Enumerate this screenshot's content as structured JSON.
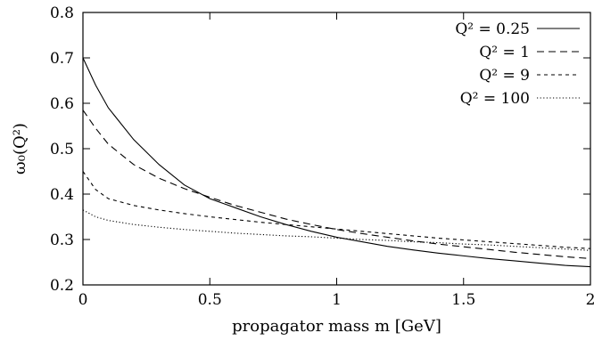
{
  "chart_data": {
    "type": "line",
    "title": "",
    "xlabel": "propagator mass m [GeV]",
    "ylabel": "ω₀(Q²)",
    "xlim": [
      0,
      2
    ],
    "ylim": [
      0.2,
      0.8
    ],
    "xticks": [
      "0",
      "0.5",
      "1",
      "1.5",
      "2"
    ],
    "yticks": [
      "0.2",
      "0.3",
      "0.4",
      "0.5",
      "0.6",
      "0.7",
      "0.8"
    ],
    "grid": false,
    "legend_position": "top-right",
    "x": [
      0,
      0.05,
      0.1,
      0.2,
      0.3,
      0.4,
      0.5,
      0.6,
      0.7,
      0.8,
      0.9,
      1.0,
      1.1,
      1.2,
      1.3,
      1.4,
      1.5,
      1.6,
      1.7,
      1.8,
      1.9,
      2.0
    ],
    "series": [
      {
        "name": "Q² = 0.25",
        "style": "solid",
        "values": [
          0.7,
          0.64,
          0.59,
          0.52,
          0.465,
          0.42,
          0.39,
          0.37,
          0.35,
          0.333,
          0.318,
          0.305,
          0.295,
          0.285,
          0.277,
          0.27,
          0.264,
          0.258,
          0.253,
          0.248,
          0.243,
          0.24
        ]
      },
      {
        "name": "Q² = 1",
        "style": "dashed",
        "values": [
          0.585,
          0.545,
          0.51,
          0.465,
          0.435,
          0.412,
          0.393,
          0.375,
          0.36,
          0.345,
          0.333,
          0.322,
          0.313,
          0.305,
          0.297,
          0.29,
          0.284,
          0.278,
          0.272,
          0.267,
          0.262,
          0.258
        ]
      },
      {
        "name": "Q² = 9",
        "style": "short-dashed",
        "values": [
          0.45,
          0.41,
          0.39,
          0.375,
          0.365,
          0.357,
          0.35,
          0.344,
          0.338,
          0.333,
          0.328,
          0.323,
          0.318,
          0.313,
          0.308,
          0.303,
          0.299,
          0.295,
          0.291,
          0.287,
          0.283,
          0.28
        ]
      },
      {
        "name": "Q² = 100",
        "style": "dotted",
        "values": [
          0.365,
          0.35,
          0.342,
          0.333,
          0.327,
          0.322,
          0.318,
          0.314,
          0.311,
          0.308,
          0.306,
          0.303,
          0.3,
          0.298,
          0.295,
          0.293,
          0.29,
          0.288,
          0.285,
          0.282,
          0.279,
          0.276
        ]
      }
    ]
  }
}
